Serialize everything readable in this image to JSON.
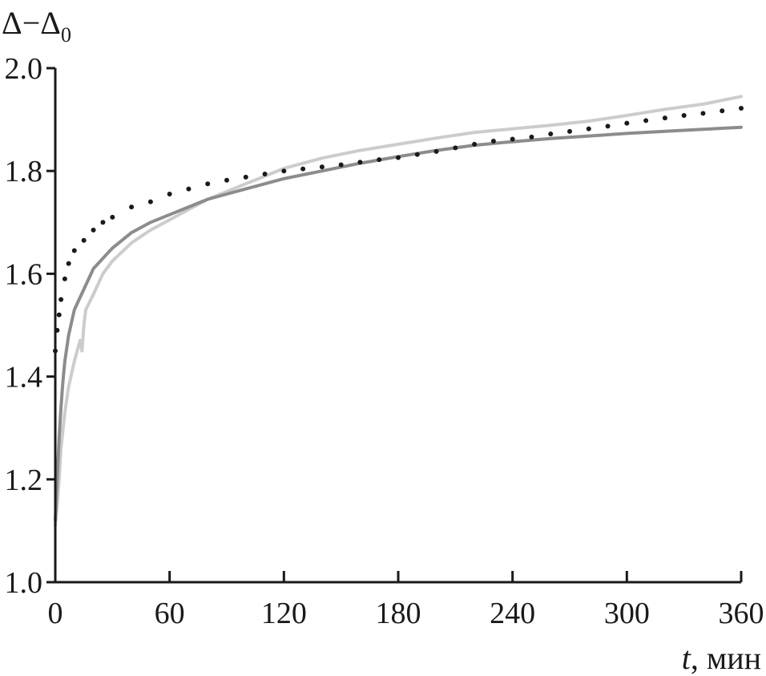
{
  "chart_data": {
    "type": "line",
    "ylabel": "Δ−Δ",
    "ylabel_sub": "0",
    "xlabel_var": "t",
    "xlabel_unit": ", мин",
    "xlim": [
      0,
      360
    ],
    "ylim": [
      1.0,
      2.0
    ],
    "x_ticks": [
      0,
      60,
      120,
      180,
      240,
      300,
      360
    ],
    "x_tick_labels": [
      "0",
      "60",
      "120",
      "180",
      "240",
      "300",
      "360"
    ],
    "y_ticks": [
      1.0,
      1.2,
      1.4,
      1.6,
      1.8,
      2.0
    ],
    "y_tick_labels": [
      "1.0",
      "1.2",
      "1.4",
      "1.6",
      "1.8",
      "2.0"
    ],
    "grid": false,
    "legend": "none",
    "series": [
      {
        "style": "dots",
        "color": "#1a1a1a",
        "x": [
          0,
          1,
          2,
          3,
          5,
          7,
          10,
          15,
          20,
          25,
          30,
          40,
          50,
          60,
          70,
          80,
          90,
          100,
          110,
          120,
          130,
          140,
          150,
          160,
          170,
          180,
          190,
          200,
          210,
          220,
          230,
          240,
          250,
          260,
          270,
          280,
          290,
          300,
          310,
          320,
          330,
          340,
          350,
          360
        ],
        "values": [
          1.45,
          1.49,
          1.52,
          1.55,
          1.59,
          1.62,
          1.645,
          1.665,
          1.685,
          1.7,
          1.71,
          1.73,
          1.74,
          1.755,
          1.765,
          1.775,
          1.782,
          1.788,
          1.794,
          1.8,
          1.804,
          1.808,
          1.812,
          1.817,
          1.822,
          1.826,
          1.832,
          1.838,
          1.845,
          1.852,
          1.858,
          1.862,
          1.866,
          1.872,
          1.877,
          1.882,
          1.887,
          1.893,
          1.898,
          1.903,
          1.908,
          1.912,
          1.917,
          1.922
        ]
      },
      {
        "style": "line",
        "color": "#8c8c8c",
        "x": [
          0,
          1,
          2,
          3,
          4,
          5,
          7,
          10,
          15,
          20,
          25,
          30,
          40,
          50,
          60,
          70,
          80,
          90,
          100,
          110,
          120,
          140,
          160,
          180,
          200,
          220,
          240,
          260,
          280,
          300,
          320,
          340,
          360
        ],
        "values": [
          1.12,
          1.2,
          1.28,
          1.34,
          1.39,
          1.43,
          1.48,
          1.53,
          1.57,
          1.61,
          1.63,
          1.65,
          1.68,
          1.7,
          1.715,
          1.73,
          1.745,
          1.755,
          1.765,
          1.775,
          1.785,
          1.8,
          1.815,
          1.828,
          1.84,
          1.85,
          1.857,
          1.863,
          1.868,
          1.873,
          1.877,
          1.881,
          1.885
        ]
      },
      {
        "style": "line",
        "color": "#cccccc",
        "x": [
          0,
          1,
          2,
          3,
          5,
          7,
          10,
          13,
          14,
          15,
          16,
          20,
          25,
          30,
          40,
          50,
          60,
          70,
          80,
          90,
          100,
          110,
          120,
          130,
          140,
          160,
          180,
          200,
          220,
          240,
          260,
          280,
          300,
          320,
          340,
          360
        ],
        "values": [
          1.11,
          1.15,
          1.2,
          1.26,
          1.33,
          1.38,
          1.43,
          1.47,
          1.45,
          1.5,
          1.53,
          1.56,
          1.6,
          1.625,
          1.66,
          1.685,
          1.705,
          1.725,
          1.745,
          1.76,
          1.775,
          1.79,
          1.805,
          1.815,
          1.825,
          1.84,
          1.852,
          1.864,
          1.875,
          1.882,
          1.889,
          1.897,
          1.908,
          1.92,
          1.93,
          1.945
        ]
      }
    ]
  }
}
